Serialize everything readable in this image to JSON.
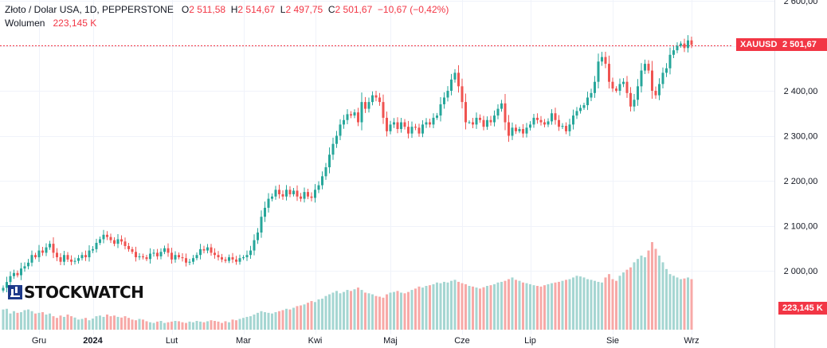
{
  "legend": {
    "title": "Złoto / Dolar USA, 1D, PEPPERSTONE",
    "o_key": "O",
    "o_val": "2 511,58",
    "h_key": "H",
    "h_val": "2 514,67",
    "l_key": "L",
    "l_val": "2 497,75",
    "c_key": "C",
    "c_val": "2 501,67",
    "change": "−10,67 (−0,42%)",
    "volume_label": "Wolumen",
    "volume_val": "223,145 K"
  },
  "logo_text": "STOCKWATCH",
  "tags": {
    "symbol": "XAUUSD",
    "price": "2 501,67",
    "volume": "223,145 K"
  },
  "colors": {
    "up": "#26a69a",
    "down": "#ef5350",
    "vol_up": "#a5d6d2",
    "vol_down": "#f7a9a7",
    "grid": "#f0f3fa",
    "price_line": "#f23645"
  },
  "chart_data": {
    "type": "candlestick",
    "x_ticks": [
      "Gru",
      "2024",
      "Lut",
      "Mar",
      "Kwi",
      "Maj",
      "Cze",
      "Lip",
      "Sie",
      "Wrz"
    ],
    "y_ticks": [
      "2 000,00",
      "2 100,00",
      "2 200,00",
      "2 300,00",
      "2 400,00",
      "2 500,00",
      "2 600,00"
    ],
    "y_tick_values": [
      2000,
      2100,
      2200,
      2300,
      2400,
      2500,
      2600
    ],
    "ylim": [
      1890,
      2610
    ],
    "last_price": 2501.67,
    "volume_last": 223145,
    "month_start_index": {
      "Gru": 10,
      "2024": 25,
      "Lut": 47,
      "Mar": 67,
      "Kwi": 87,
      "Maj": 108,
      "Cze": 128,
      "Lip": 147,
      "Sie": 170,
      "Wrz": 192
    },
    "close": [
      1962,
      1975,
      1988,
      1995,
      1990,
      2005,
      2010,
      2018,
      2035,
      2030,
      2045,
      2040,
      2052,
      2060,
      2040,
      2030,
      2020,
      2035,
      2025,
      2020,
      2022,
      2028,
      2035,
      2030,
      2045,
      2048,
      2062,
      2070,
      2080,
      2075,
      2068,
      2060,
      2070,
      2065,
      2055,
      2048,
      2042,
      2030,
      2032,
      2030,
      2026,
      2038,
      2040,
      2032,
      2042,
      2050,
      2040,
      2025,
      2035,
      2030,
      2028,
      2018,
      2020,
      2028,
      2035,
      2048,
      2045,
      2052,
      2040,
      2035,
      2030,
      2025,
      2022,
      2030,
      2025,
      2020,
      2028,
      2030,
      2035,
      2045,
      2068,
      2085,
      2120,
      2140,
      2160,
      2165,
      2180,
      2170,
      2165,
      2180,
      2170,
      2178,
      2165,
      2160,
      2175,
      2165,
      2162,
      2180,
      2190,
      2210,
      2230,
      2258,
      2282,
      2300,
      2325,
      2335,
      2348,
      2345,
      2352,
      2330,
      2375,
      2360,
      2375,
      2390,
      2385,
      2375,
      2340,
      2310,
      2325,
      2330,
      2315,
      2330,
      2320,
      2305,
      2320,
      2318,
      2305,
      2325,
      2330,
      2325,
      2340,
      2345,
      2370,
      2385,
      2400,
      2425,
      2440,
      2410,
      2375,
      2330,
      2330,
      2325,
      2340,
      2335,
      2320,
      2335,
      2330,
      2345,
      2360,
      2372,
      2330,
      2300,
      2318,
      2310,
      2315,
      2305,
      2318,
      2325,
      2340,
      2335,
      2330,
      2325,
      2332,
      2350,
      2335,
      2320,
      2322,
      2310,
      2325,
      2345,
      2355,
      2362,
      2368,
      2385,
      2395,
      2420,
      2465,
      2475,
      2460,
      2420,
      2405,
      2400,
      2415,
      2420,
      2395,
      2365,
      2380,
      2410,
      2445,
      2460,
      2445,
      2400,
      2390,
      2415,
      2440,
      2450,
      2480,
      2490,
      2500,
      2505,
      2495,
      2512,
      2502
    ],
    "volume": [
      60,
      62,
      48,
      55,
      50,
      52,
      58,
      60,
      55,
      48,
      50,
      52,
      45,
      48,
      40,
      35,
      42,
      38,
      45,
      40,
      36,
      30,
      32,
      35,
      28,
      33,
      40,
      42,
      38,
      45,
      40,
      42,
      38,
      36,
      40,
      35,
      30,
      28,
      32,
      30,
      25,
      22,
      20,
      24,
      26,
      20,
      22,
      24,
      26,
      25,
      22,
      20,
      24,
      22,
      26,
      24,
      22,
      25,
      28,
      26,
      24,
      20,
      25,
      22,
      30,
      28,
      32,
      35,
      38,
      40,
      45,
      50,
      55,
      52,
      50,
      48,
      52,
      55,
      58,
      62,
      60,
      65,
      70,
      72,
      75,
      80,
      85,
      82,
      90,
      92,
      100,
      105,
      110,
      115,
      108,
      112,
      118,
      115,
      120,
      125,
      118,
      110,
      108,
      105,
      100,
      98,
      95,
      105,
      110,
      112,
      115,
      110,
      108,
      112,
      118,
      122,
      128,
      125,
      130,
      132,
      135,
      140,
      138,
      142,
      140,
      145,
      148,
      142,
      138,
      135,
      130,
      128,
      125,
      122,
      126,
      130,
      132,
      135,
      140,
      142,
      145,
      150,
      155,
      148,
      145,
      140,
      138,
      135,
      132,
      130,
      128,
      132,
      135,
      138,
      140,
      142,
      145,
      148,
      150,
      155,
      160,
      158,
      155,
      150,
      148,
      145,
      142,
      140,
      155,
      165,
      150,
      145,
      160,
      170,
      178,
      185,
      200,
      210,
      220,
      215,
      235,
      260,
      240,
      220,
      200,
      180,
      165,
      160,
      155,
      150,
      152,
      155,
      150
    ]
  }
}
